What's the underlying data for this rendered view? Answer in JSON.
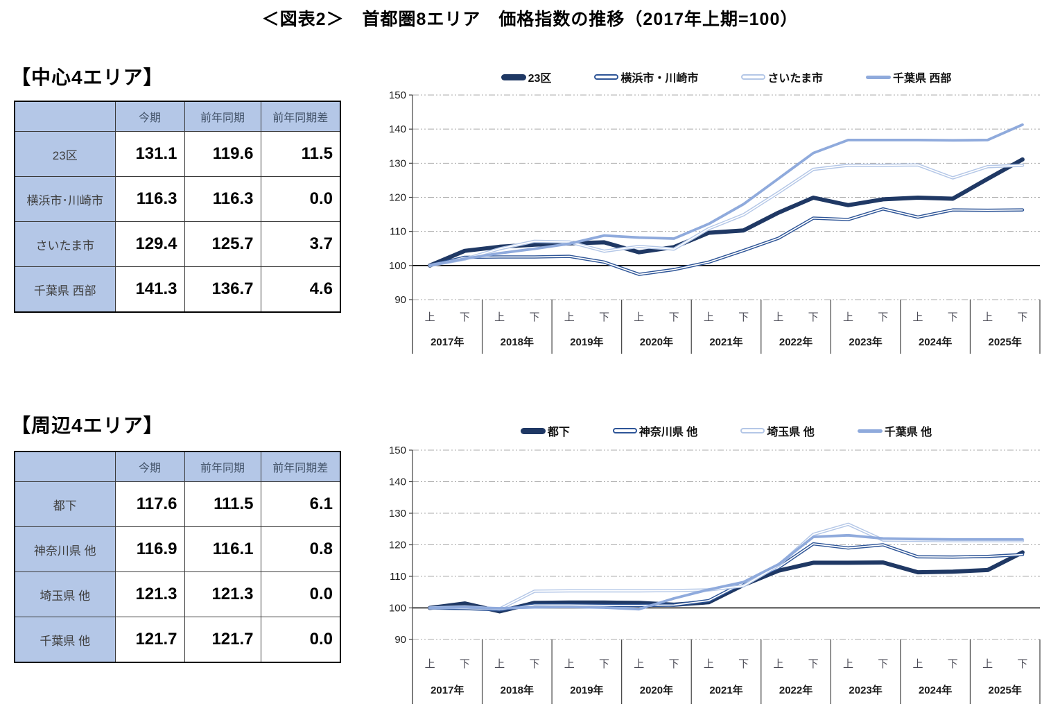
{
  "title": "＜図表2＞　首都圏8エリア　価格指数の推移（2017年上期=100）",
  "colors": {
    "table_fill": "#B4C7E7",
    "series_dark_navy": "#1F3864",
    "series_medium_blue": "#2E5597",
    "series_pale_blue": "#B4C7E7",
    "series_light_blue": "#8FAADC",
    "gridline": "#ABABAB",
    "baseline": "#000000"
  },
  "sections": [
    {
      "heading": "【中心4エリア】",
      "table": {
        "col_headers": [
          "今期",
          "前年同期",
          "前年同期差"
        ],
        "rows": [
          {
            "label": "23区",
            "current": "131.1",
            "prev_year": "119.6",
            "diff": "11.5"
          },
          {
            "label": "横浜市･川崎市",
            "current": "116.3",
            "prev_year": "116.3",
            "diff": "0.0"
          },
          {
            "label": "さいたま市",
            "current": "129.4",
            "prev_year": "125.7",
            "diff": "3.7"
          },
          {
            "label": "千葉県 西部",
            "current": "141.3",
            "prev_year": "136.7",
            "diff": "4.6"
          }
        ]
      }
    },
    {
      "heading": "【周辺4エリア】",
      "table": {
        "col_headers": [
          "今期",
          "前年同期",
          "前年同期差"
        ],
        "rows": [
          {
            "label": "都下",
            "current": "117.6",
            "prev_year": "111.5",
            "diff": "6.1"
          },
          {
            "label": "神奈川県 他",
            "current": "116.9",
            "prev_year": "116.1",
            "diff": "0.8"
          },
          {
            "label": "埼玉県 他",
            "current": "121.3",
            "prev_year": "121.3",
            "diff": "0.0"
          },
          {
            "label": "千葉県 他",
            "current": "121.7",
            "prev_year": "121.7",
            "diff": "0.0"
          }
        ]
      }
    }
  ],
  "chart_data": [
    {
      "type": "line",
      "group": "中心4エリア",
      "index_note": "2017年上期=100",
      "years": [
        "2017年",
        "2018年",
        "2019年",
        "2020年",
        "2021年",
        "2022年",
        "2023年",
        "2024年",
        "2025年"
      ],
      "half_labels": [
        "上",
        "下"
      ],
      "ylim": [
        90,
        150
      ],
      "yticks": [
        90,
        100,
        110,
        120,
        130,
        140,
        150
      ],
      "baseline": 100,
      "grid": true,
      "legend_position": "top",
      "series": [
        {
          "name": "23区",
          "style": "thick",
          "color": "#1F3864",
          "values": [
            100,
            104.3,
            105.5,
            106.1,
            106.5,
            106.8,
            103.9,
            105.4,
            109.6,
            110.3,
            115.5,
            119.9,
            117.7,
            119.4,
            119.9,
            119.6,
            125.4,
            131.1
          ]
        },
        {
          "name": "横浜市・川崎市",
          "style": "outlined",
          "color": "#2E5597",
          "values": [
            100,
            102.4,
            102.5,
            102.5,
            102.7,
            101.0,
            97.4,
            98.8,
            101.0,
            104.4,
            108.0,
            113.9,
            113.5,
            116.6,
            114.2,
            116.3,
            116.2,
            116.3
          ]
        },
        {
          "name": "さいたま市",
          "style": "outlined",
          "color": "#B4C7E7",
          "values": [
            100,
            101.9,
            104.9,
            107.1,
            106.9,
            104.2,
            105.6,
            104.8,
            110.8,
            114.9,
            121.4,
            128.2,
            129.4,
            129.4,
            129.5,
            125.7,
            129.0,
            129.4
          ]
        },
        {
          "name": "千葉県 西部",
          "style": "solid",
          "color": "#8FAADC",
          "values": [
            100,
            102.0,
            103.6,
            104.9,
            106.4,
            108.8,
            108.2,
            107.9,
            112.2,
            118.0,
            125.5,
            133.0,
            136.8,
            136.8,
            136.8,
            136.7,
            136.8,
            141.3
          ]
        }
      ]
    },
    {
      "type": "line",
      "group": "周辺4エリア",
      "index_note": "2017年上期=100",
      "years": [
        "2017年",
        "2018年",
        "2019年",
        "2020年",
        "2021年",
        "2022年",
        "2023年",
        "2024年",
        "2025年"
      ],
      "half_labels": [
        "上",
        "下"
      ],
      "ylim": [
        90,
        150
      ],
      "yticks": [
        90,
        100,
        110,
        120,
        130,
        140,
        150
      ],
      "baseline": 100,
      "grid": true,
      "legend_position": "top",
      "series": [
        {
          "name": "都下",
          "style": "thick",
          "color": "#1F3864",
          "values": [
            100,
            101.4,
            98.9,
            101.6,
            101.7,
            101.7,
            101.6,
            101.0,
            101.8,
            107.3,
            111.8,
            114.3,
            114.3,
            114.4,
            111.3,
            111.5,
            112.0,
            117.6
          ]
        },
        {
          "name": "神奈川県 他",
          "style": "outlined",
          "color": "#2E5597",
          "values": [
            100,
            99.8,
            99.4,
            100.9,
            100.9,
            100.8,
            100.8,
            100.9,
            102.3,
            108.0,
            112.8,
            120.3,
            119.0,
            120.0,
            116.2,
            116.1,
            116.3,
            116.9
          ]
        },
        {
          "name": "埼玉県 他",
          "style": "outlined",
          "color": "#B4C7E7",
          "values": [
            100,
            100.3,
            99.7,
            105.3,
            105.4,
            105.4,
            105.4,
            105.5,
            105.7,
            107.0,
            113.5,
            123.3,
            126.5,
            121.5,
            121.4,
            121.3,
            121.3,
            121.3
          ]
        },
        {
          "name": "千葉県 他",
          "style": "solid",
          "color": "#8FAADC",
          "values": [
            100,
            100.2,
            99.9,
            100.2,
            100.3,
            100.1,
            99.6,
            103.0,
            105.8,
            108.2,
            113.8,
            122.5,
            123.0,
            122.0,
            121.8,
            121.7,
            121.7,
            121.7
          ]
        }
      ]
    }
  ]
}
